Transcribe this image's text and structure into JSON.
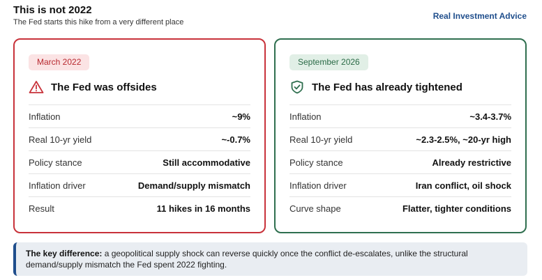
{
  "header": {
    "title": "This is not 2022",
    "subtitle": "The Fed starts this hike from a very different place",
    "brand": "Real Investment Advice"
  },
  "colors": {
    "left_accent": "#c8323a",
    "right_accent": "#2f6f4f",
    "brand": "#1f4e8c"
  },
  "left_card": {
    "badge": "March 2022",
    "icon": "warning-triangle-icon",
    "heading": "The Fed was offsides",
    "rows": [
      {
        "label": "Inflation",
        "value": "~9%"
      },
      {
        "label": "Real 10-yr yield",
        "value": "~-0.7%"
      },
      {
        "label": "Policy stance",
        "value": "Still accommodative"
      },
      {
        "label": "Inflation driver",
        "value": "Demand/supply mismatch"
      },
      {
        "label": "Result",
        "value": "11 hikes in 16 months"
      }
    ]
  },
  "right_card": {
    "badge": "September 2026",
    "icon": "shield-icon",
    "heading": "The Fed has already tightened",
    "rows": [
      {
        "label": "Inflation",
        "value": "~3.4-3.7%"
      },
      {
        "label": "Real 10-yr yield",
        "value": "~2.3-2.5%, ~20-yr high"
      },
      {
        "label": "Policy stance",
        "value": "Already restrictive"
      },
      {
        "label": "Inflation driver",
        "value": "Iran conflict, oil shock"
      },
      {
        "label": "Curve shape",
        "value": "Flatter, tighter conditions"
      }
    ]
  },
  "note": {
    "lead": "The key difference:",
    "text": "a geopolitical supply shock can reverse quickly once the conflict de-escalates, unlike the structural demand/supply mismatch the Fed spent 2022 fighting."
  }
}
